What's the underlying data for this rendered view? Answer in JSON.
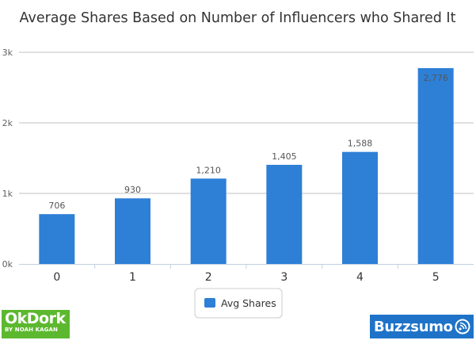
{
  "chart_data": {
    "type": "bar",
    "title": "Average Shares Based on Number of Influencers who Shared It",
    "categories": [
      "0",
      "1",
      "2",
      "3",
      "4",
      "5"
    ],
    "series": [
      {
        "name": "Avg Shares",
        "values": [
          706,
          930,
          1210,
          1405,
          1588,
          2776
        ],
        "value_labels": [
          "706",
          "930",
          "1,210",
          "1,405",
          "1,588",
          "2,776"
        ]
      }
    ],
    "ylim": [
      0,
      3000
    ],
    "yticks": [
      {
        "value": 0,
        "label": "0k"
      },
      {
        "value": 1000,
        "label": "1k"
      },
      {
        "value": 2000,
        "label": "2k"
      },
      {
        "value": 3000,
        "label": "3k"
      }
    ],
    "grid": true,
    "legend": "bottom-center",
    "bar_color": "#2e7fd6"
  },
  "logos": {
    "left_main": "OkDork",
    "left_sub": "BY NOAH KAGAN",
    "right": "Buzzsumo",
    "left_color": "#5cb82e",
    "right_color": "#1e73c8"
  }
}
